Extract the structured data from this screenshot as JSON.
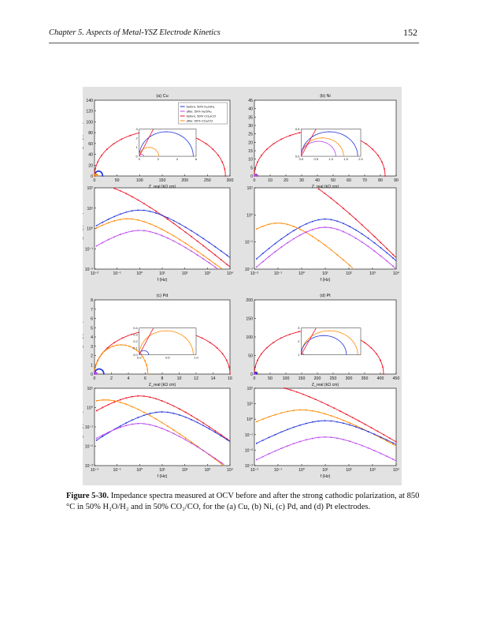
{
  "header": {
    "chapter": "Chapter 5. Aspects of Metal-YSZ Electrode Kinetics",
    "page_number": "152"
  },
  "caption": {
    "label": "Figure 5-30.",
    "text": "Impedance spectra measured at OCV before and after the strong cathodic polarization, at 850 °C in 50% H₂O/H₂ and in 50% CO₂/CO, for the (a) Cu, (b) Ni, (c) Pd, and (d) Pt electrodes."
  },
  "colors": {
    "before_h2": "#2233dd",
    "after_h2": "#bb44ee",
    "before_co": "#ee1122",
    "after_co": "#ff8800",
    "panel_bg": "#e2e2e2"
  },
  "chart_data": [
    {
      "type": "line",
      "title": "(a) Cu",
      "xlabel": "Z_real (kΩ cm)",
      "ylabel": "−Z_imag (kΩ cm)",
      "xlim": [
        0,
        300
      ],
      "ylim": [
        0,
        140
      ],
      "xticks": [
        "0",
        "50",
        "100",
        "150",
        "200",
        "250",
        "300"
      ],
      "yticks": [
        "0",
        "20",
        "40",
        "60",
        "80",
        "100",
        "120",
        "140"
      ],
      "legend": [
        "before, 50% H₂O/H₂",
        "after, 50% H₂O/H₂",
        "before, 50% CO₂/CO",
        "after, 50% CO₂/CO"
      ],
      "series": [
        {
          "name": "before, 50% H₂O/H₂",
          "arc": [
            0,
            18
          ]
        },
        {
          "name": "after, 50% H₂O/H₂",
          "arc": [
            0,
            1.5
          ]
        },
        {
          "name": "before, 50% CO₂/CO",
          "arc": [
            0,
            290
          ]
        },
        {
          "name": "after, 50% CO₂/CO",
          "arc": [
            0,
            6.5
          ]
        }
      ],
      "inset": {
        "xticks": [
          "0",
          "2",
          "4",
          "6"
        ],
        "yticks": [
          "0",
          "1",
          "2",
          "3"
        ]
      }
    },
    {
      "type": "line",
      "title": "(b) Ni",
      "xlabel": "Z_real (kΩ cm)",
      "ylabel": "",
      "xlim": [
        0,
        90
      ],
      "ylim": [
        0,
        45
      ],
      "xticks": [
        "0",
        "10",
        "20",
        "30",
        "40",
        "50",
        "60",
        "70",
        "80",
        "90"
      ],
      "yticks": [
        "0",
        "5",
        "10",
        "15",
        "20",
        "25",
        "30",
        "35",
        "40",
        "45"
      ],
      "series": [
        {
          "name": "before, 50% CO₂/CO",
          "arc": [
            0,
            83
          ]
        },
        {
          "name": "before, 50% H₂O/H₂",
          "arc": [
            0,
            1.8
          ]
        },
        {
          "name": "after, 50% CO₂/CO",
          "arc": [
            0,
            1.35
          ]
        },
        {
          "name": "after, 50% H₂O/H₂",
          "arc": [
            0,
            1.1
          ]
        }
      ],
      "inset": {
        "xticks": [
          "0.0",
          "0.5",
          "1.0",
          "1.5",
          "2.0"
        ],
        "yticks": [
          "0.0",
          "0.5"
        ]
      }
    },
    {
      "type": "line",
      "title": "(c) Pd",
      "xlabel": "Z_real (kΩ cm)",
      "ylabel": "−Z_imag (kΩ cm)",
      "xlim": [
        0,
        16
      ],
      "ylim": [
        0,
        8
      ],
      "xticks": [
        "0",
        "2",
        "4",
        "6",
        "8",
        "10",
        "12",
        "14",
        "16"
      ],
      "yticks": [
        "0",
        "1",
        "2",
        "3",
        "4",
        "5",
        "6",
        "7",
        "8"
      ],
      "series": [
        {
          "name": "before, 50% CO₂/CO",
          "arc": [
            0,
            16
          ]
        },
        {
          "name": "after, 50% CO₂/CO",
          "arc": [
            0,
            6.3
          ]
        },
        {
          "name": "before, 50% H₂O/H₂",
          "arc": [
            0,
            1.1
          ]
        },
        {
          "name": "after, 50% H₂O/H₂",
          "arc": [
            0,
            0.3
          ]
        }
      ],
      "inset": {
        "xticks": [
          "0.0",
          "0.5",
          "1.0"
        ],
        "yticks": [
          "0.0",
          "0.1",
          "0.2",
          "0.3",
          "0.4"
        ]
      }
    },
    {
      "type": "line",
      "title": "(d) Pt",
      "xlabel": "Z_real (kΩ cm)",
      "ylabel": "",
      "xlim": [
        0,
        450
      ],
      "ylim": [
        0,
        200
      ],
      "xticks": [
        "0",
        "50",
        "100",
        "150",
        "200",
        "250",
        "300",
        "350",
        "400",
        "450"
      ],
      "yticks": [
        "0",
        "50",
        "100",
        "150",
        "200"
      ],
      "series": [
        {
          "name": "before, 50% CO₂/CO",
          "arc": [
            0,
            410
          ]
        },
        {
          "name": "after, 50% CO₂/CO",
          "arc": [
            0,
            10
          ]
        },
        {
          "name": "before, 50% H₂O/H₂",
          "arc": [
            0,
            8
          ]
        },
        {
          "name": "after, 50% H₂O/H₂",
          "arc": [
            0,
            0.5
          ]
        }
      ],
      "inset": {
        "xticks": [],
        "yticks": [
          "1",
          "2",
          "3"
        ]
      }
    },
    {
      "type": "line",
      "title": "",
      "xlabel": "f (Hz)",
      "ylabel": "−Z_imag (kΩ cm)",
      "scale": "log",
      "yticks": [
        "10⁻²",
        "10⁻¹",
        "10⁰",
        "10¹",
        "10²"
      ],
      "xticks": [
        "10⁻²",
        "10⁻¹",
        "10⁰",
        "10¹",
        "10²",
        "10³",
        "10⁴"
      ],
      "series": [
        {
          "name": "before, 50% CO₂/CO",
          "peak_f": 0.01,
          "peak_z": 150
        },
        {
          "name": "before, 50% H₂O/H₂",
          "peak_f": 1,
          "peak_z": 8
        },
        {
          "name": "after, 50% CO₂/CO",
          "peak_f": 0.3,
          "peak_z": 3
        },
        {
          "name": "after, 50% H₂O/H₂",
          "peak_f": 1,
          "peak_z": 0.8
        }
      ]
    },
    {
      "type": "line",
      "title": "",
      "xlabel": "f (Hz)",
      "ylabel": "",
      "scale": "log",
      "yticks": [
        "10⁻²",
        "10⁻¹",
        "10⁰",
        "10¹"
      ],
      "xticks": [
        "10⁻²",
        "10⁻¹",
        "10⁰",
        "10¹",
        "10²",
        "10³",
        "10⁴"
      ],
      "series": [
        {
          "name": "before, 50% CO₂/CO",
          "peak_f": 0.1,
          "peak_z": 40
        },
        {
          "name": "before, 50% H₂O/H₂",
          "peak_f": 10,
          "peak_z": 0.7
        },
        {
          "name": "after, 50% CO₂/CO",
          "peak_f": 0.1,
          "peak_z": 0.5
        },
        {
          "name": "after, 50% H₂O/H₂",
          "peak_f": 10,
          "peak_z": 0.35
        }
      ]
    },
    {
      "type": "line",
      "title": "",
      "xlabel": "f (Hz)",
      "ylabel": "−Z_imag (kΩ cm)",
      "scale": "log",
      "yticks": [
        "10⁻³",
        "10⁻²",
        "10⁻¹",
        "10⁰",
        "10¹"
      ],
      "xticks": [
        "10⁻²",
        "10⁻¹",
        "10⁰",
        "10¹",
        "10²",
        "10³",
        "10⁴"
      ],
      "series": [
        {
          "name": "before, 50% CO₂/CO",
          "peak_f": 1,
          "peak_z": 4
        },
        {
          "name": "after, 50% CO₂/CO",
          "peak_f": 0.03,
          "peak_z": 2.5
        },
        {
          "name": "before, 50% H₂O/H₂",
          "peak_f": 10,
          "peak_z": 0.6
        },
        {
          "name": "after, 50% H₂O/H₂",
          "peak_f": 1,
          "peak_z": 0.15
        }
      ]
    },
    {
      "type": "line",
      "title": "",
      "xlabel": "f (Hz)",
      "ylabel": "",
      "scale": "log",
      "yticks": [
        "10⁻³",
        "10⁻²",
        "10⁻¹",
        "10⁰",
        "10¹",
        "10²"
      ],
      "xticks": [
        "10⁻²",
        "10⁻¹",
        "10⁰",
        "10¹",
        "10²",
        "10³",
        "10⁴"
      ],
      "series": [
        {
          "name": "before, 50% CO₂/CO",
          "peak_f": 0.03,
          "peak_z": 150
        },
        {
          "name": "after, 50% CO₂/CO",
          "peak_f": 1,
          "peak_z": 4
        },
        {
          "name": "before, 50% H₂O/H₂",
          "peak_f": 10,
          "peak_z": 0.8
        },
        {
          "name": "after, 50% H₂O/H₂",
          "peak_f": 10,
          "peak_z": 0.07
        }
      ]
    }
  ]
}
